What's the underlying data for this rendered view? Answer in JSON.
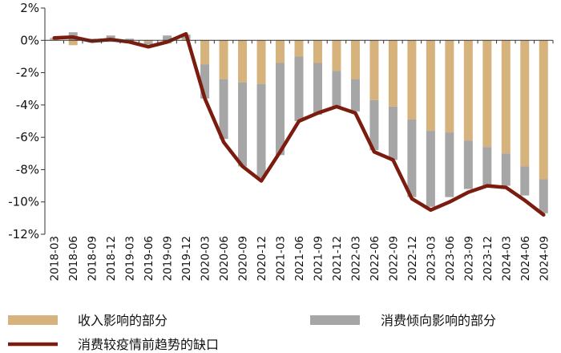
{
  "chart_data": {
    "type": "bar",
    "stacked": true,
    "ylim": [
      -12,
      2
    ],
    "yticks": [
      2,
      0,
      -2,
      -4,
      -6,
      -8,
      -10,
      -12
    ],
    "ytick_labels": [
      "2%",
      "0%",
      "-2%",
      "-4%",
      "-6%",
      "-8%",
      "-10%",
      "-12%"
    ],
    "grid": false,
    "legend_position": "bottom",
    "colors": {
      "income": "#d6b37c",
      "propensity": "#a6a6a6",
      "gap_line": "#7b1c0e"
    },
    "categories": [
      "2018-03",
      "2018-06",
      "2018-09",
      "2018-12",
      "2019-03",
      "2019-06",
      "2019-09",
      "2019-12",
      "2020-03",
      "2020-06",
      "2020-09",
      "2020-12",
      "2021-03",
      "2021-06",
      "2021-09",
      "2021-12",
      "2022-03",
      "2022-06",
      "2022-09",
      "2022-12",
      "2023-03",
      "2023-06",
      "2023-09",
      "2023-12",
      "2024-03",
      "2024-06",
      "2024-09"
    ],
    "series": [
      {
        "name": "收入影响的部分",
        "kind": "bar",
        "values": [
          0.1,
          -0.3,
          -0.1,
          -0.1,
          -0.05,
          -0.1,
          -0.2,
          0.1,
          -1.5,
          -2.4,
          -2.6,
          -2.7,
          -1.4,
          -1.0,
          -1.4,
          -1.9,
          -2.4,
          -3.7,
          -4.1,
          -4.9,
          -5.6,
          -5.7,
          -6.2,
          -6.6,
          -7.0,
          -7.8,
          -8.6
        ]
      },
      {
        "name": "消费倾向影响的部分",
        "kind": "bar",
        "values": [
          0.05,
          0.5,
          0.1,
          0.3,
          0.1,
          -0.15,
          0.3,
          0.25,
          -2.1,
          -3.7,
          -5.2,
          -5.8,
          -5.7,
          -4.0,
          -3.2,
          -2.2,
          -2.0,
          -3.1,
          -3.3,
          -4.8,
          -4.7,
          -4.0,
          -3.0,
          -2.4,
          -2.0,
          -1.8,
          -2.1
        ]
      },
      {
        "name": "消费较疫情前趋势的缺口",
        "kind": "line",
        "values": [
          0.15,
          0.2,
          -0.05,
          0.05,
          -0.1,
          -0.4,
          -0.1,
          0.4,
          -3.6,
          -6.3,
          -7.8,
          -8.7,
          -6.9,
          -5.0,
          -4.5,
          -4.1,
          -4.5,
          -6.9,
          -7.4,
          -9.8,
          -10.5,
          -10.0,
          -9.4,
          -9.0,
          -9.1,
          -9.9,
          -10.8
        ]
      }
    ]
  }
}
